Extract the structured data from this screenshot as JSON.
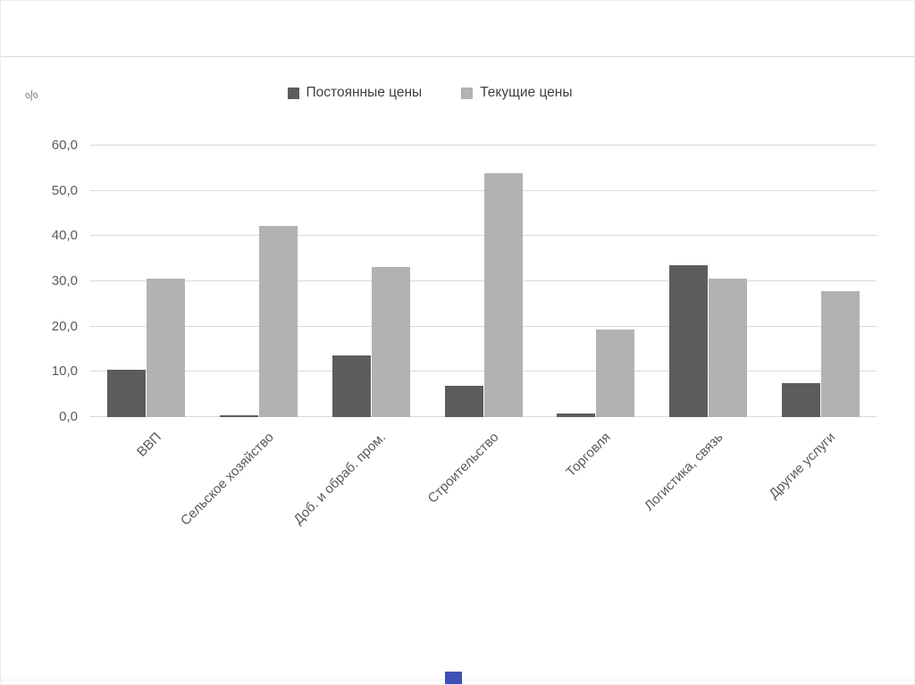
{
  "page": {
    "background": "#ffffff",
    "frame_color": "#ececec",
    "divider_color": "#dadada",
    "marker_color": "#3f51b5"
  },
  "chart_data": {
    "type": "bar",
    "title": "",
    "xlabel": "",
    "ylabel": "%",
    "categories": [
      "ВВП",
      "Сельское хозяйство",
      "Доб. и обраб. пром.",
      "Строительство",
      "Торговля",
      "Логистика, связь",
      "Другие услуги"
    ],
    "series": [
      {
        "name": "Постоянные цены",
        "color": "#5c5c5c",
        "values": [
          10.5,
          0.4,
          13.7,
          7.0,
          0.8,
          33.5,
          7.5
        ]
      },
      {
        "name": "Текущие цены",
        "color": "#b2b2b2",
        "values": [
          30.5,
          42.3,
          33.1,
          53.8,
          19.4,
          30.5,
          27.8
        ]
      }
    ],
    "ylim": [
      0,
      60
    ],
    "ytick_values": [
      0,
      10,
      20,
      30,
      40,
      50,
      60
    ],
    "ytick_labels": [
      "0,0",
      "10,0",
      "20,0",
      "30,0",
      "40,0",
      "50,0",
      "60,0"
    ],
    "grid": true,
    "legend_position": "top-center",
    "gridline_color": "#d9d9d9",
    "axis_text_color": "#595959",
    "legend_text_color": "#3f3f3f"
  }
}
